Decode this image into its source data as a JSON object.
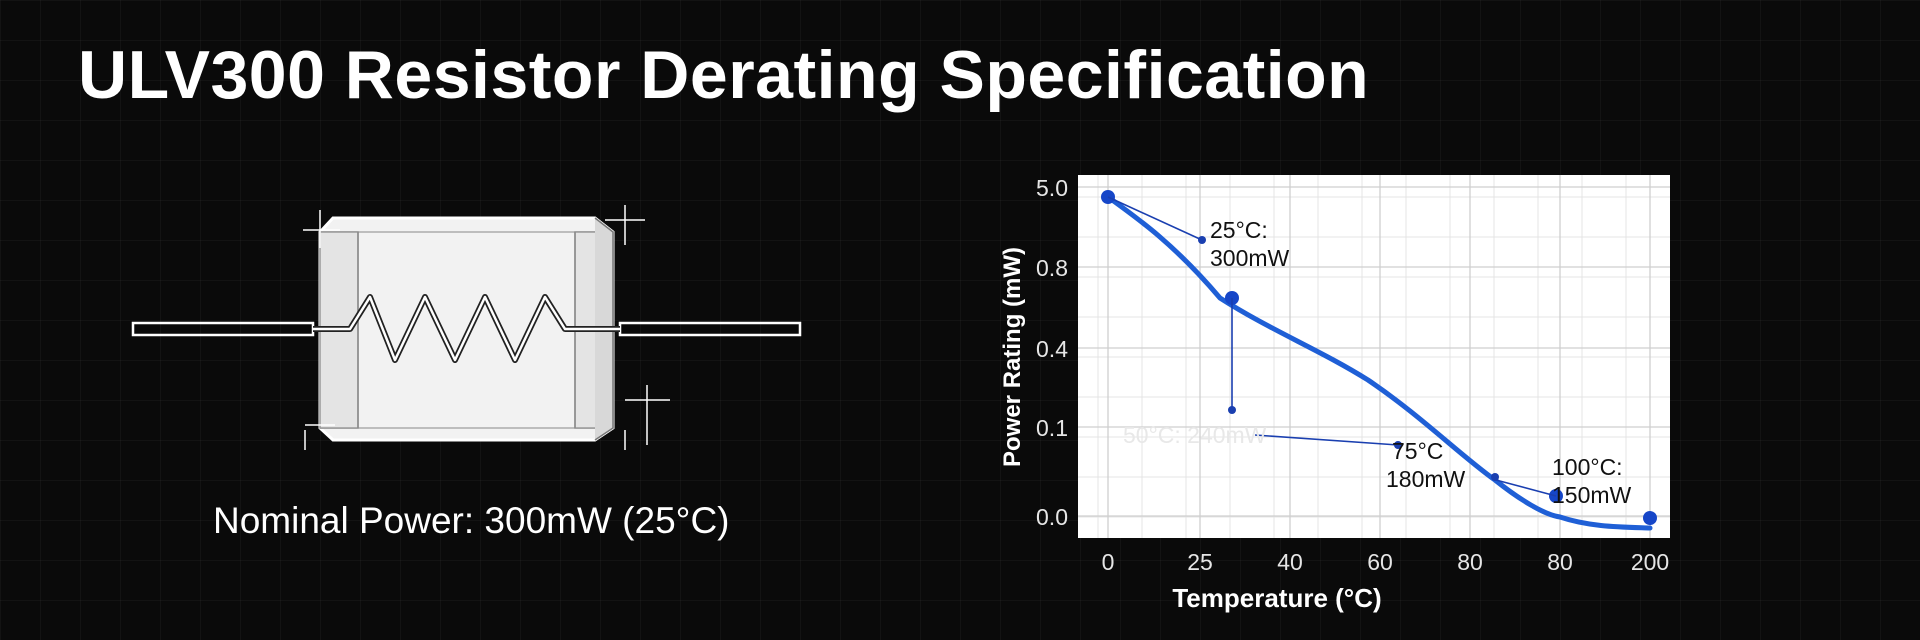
{
  "title": "ULV300 Resistor Derating Specification",
  "nominal_label": "Nominal Power: 300mW (25°C)",
  "colors": {
    "background": "#0a0a0a",
    "chart_line": "#1f5fd6",
    "chart_point": "#1646c8",
    "plot_bg": "#ffffff"
  },
  "chart_data": {
    "type": "line",
    "xlabel": "Temperature (°C)",
    "ylabel": "Power Rating (mW)",
    "x_ticks": [
      "0",
      "25",
      "40",
      "60",
      "80",
      "80",
      "200"
    ],
    "y_ticks": [
      "5.0",
      "0.8",
      "0.4",
      "0.1",
      "0.0"
    ],
    "grid": true,
    "series": [
      {
        "points": [
          {
            "x": "0",
            "y": "5.0"
          },
          {
            "x": "25",
            "y": "0.6"
          },
          {
            "x": "80",
            "y": "0.05"
          },
          {
            "x": "200",
            "y": "0.0"
          }
        ]
      }
    ],
    "annotations": [
      {
        "line1": "25°C:",
        "line2": "300mW"
      },
      {
        "line1": "50°C: 240mW",
        "line2": ""
      },
      {
        "line1": "75°C",
        "line2": "180mW"
      },
      {
        "line1": "100°C:",
        "line2": "150mW"
      }
    ]
  }
}
